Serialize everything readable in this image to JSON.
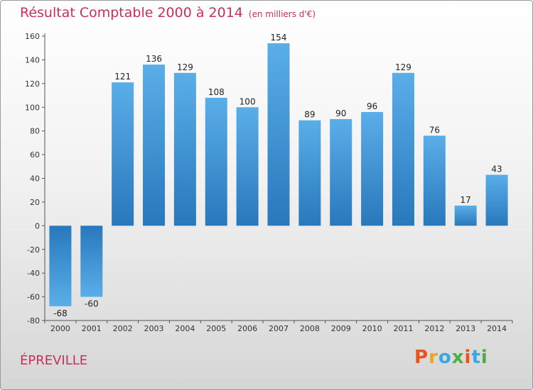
{
  "chart_data": {
    "type": "bar",
    "title": "Résultat Comptable 2000 à 2014",
    "subtitle": "(en milliers d'€)",
    "categories": [
      "2000",
      "2001",
      "2002",
      "2003",
      "2004",
      "2005",
      "2006",
      "2007",
      "2008",
      "2009",
      "2010",
      "2011",
      "2012",
      "2013",
      "2014"
    ],
    "values": [
      -68,
      -60,
      121,
      136,
      129,
      108,
      100,
      154,
      89,
      90,
      96,
      129,
      76,
      17,
      43
    ],
    "ylim": [
      -80,
      160
    ],
    "yticks": [
      -80,
      -60,
      -40,
      -20,
      0,
      20,
      40,
      60,
      80,
      100,
      120,
      140,
      160
    ],
    "xlabel": "",
    "ylabel": "",
    "grid": false
  },
  "commune": "ÉPREVILLE",
  "logo": {
    "letters": [
      {
        "ch": "P",
        "color": "#e8541b"
      },
      {
        "ch": "r",
        "color": "#f3a21b"
      },
      {
        "ch": "o",
        "color": "#3aa7e0"
      },
      {
        "ch": "x",
        "color": "#4cae3e"
      },
      {
        "ch": "i",
        "color": "#e8541b"
      },
      {
        "ch": "t",
        "color": "#3aa7e0"
      },
      {
        "ch": "i",
        "color": "#4cae3e"
      }
    ]
  },
  "colors": {
    "title": "#c8305a",
    "bar_light": "#5aaee8",
    "bar_dark": "#2878bc"
  }
}
